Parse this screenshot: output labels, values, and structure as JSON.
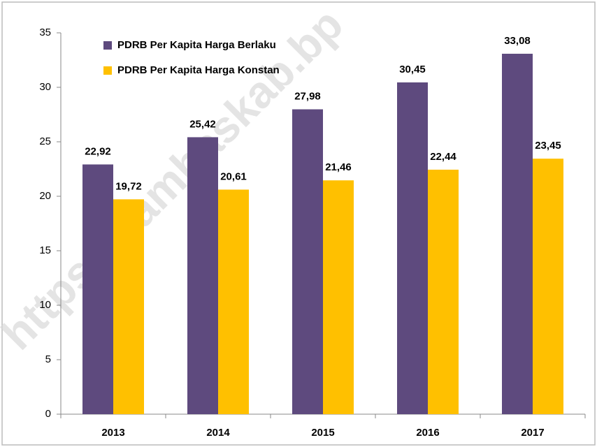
{
  "chart_data": {
    "type": "bar",
    "categories": [
      "2013",
      "2014",
      "2015",
      "2016",
      "2017"
    ],
    "series": [
      {
        "name": "PDRB Per Kapita Harga Berlaku",
        "color": "#5e4a7e",
        "values": [
          22.92,
          25.42,
          27.98,
          30.45,
          33.08
        ],
        "value_labels": [
          "22,92",
          "25,42",
          "27,98",
          "30,45",
          "33,08"
        ]
      },
      {
        "name": "PDRB Per Kapita Harga Konstan",
        "color": "#ffc000",
        "values": [
          19.72,
          20.61,
          21.46,
          22.44,
          23.45
        ],
        "value_labels": [
          "19,72",
          "20,61",
          "21,46",
          "22,44",
          "23,45"
        ]
      }
    ],
    "ylim": [
      0,
      35
    ],
    "yticks": [
      0,
      5,
      10,
      15,
      20,
      25,
      30,
      35
    ],
    "grid": false,
    "legend": "upper left",
    "watermark": "https://sambaskab.bp"
  }
}
